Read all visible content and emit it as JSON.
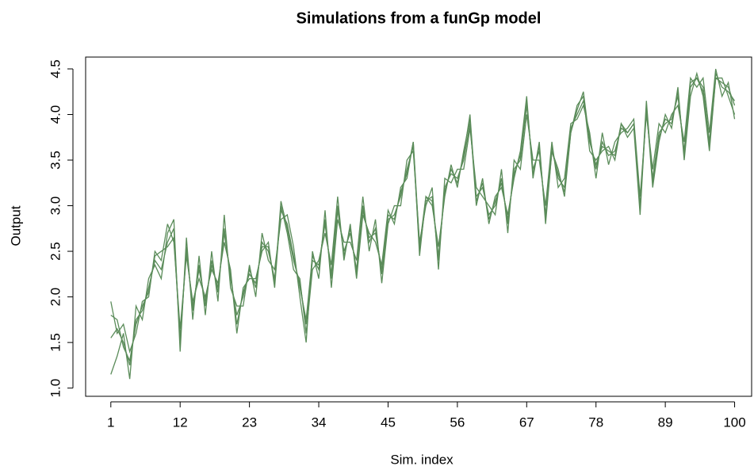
{
  "chart_data": {
    "type": "line",
    "title": "Simulations from a funGp model",
    "x_label": "Sim. index",
    "y_label": "Output",
    "x": [
      1,
      2,
      3,
      4,
      5,
      6,
      7,
      8,
      9,
      10,
      11,
      12,
      13,
      14,
      15,
      16,
      17,
      18,
      19,
      20,
      21,
      22,
      23,
      24,
      25,
      26,
      27,
      28,
      29,
      30,
      31,
      32,
      33,
      34,
      35,
      36,
      37,
      38,
      39,
      40,
      41,
      42,
      43,
      44,
      45,
      46,
      47,
      48,
      49,
      50,
      51,
      52,
      53,
      54,
      55,
      56,
      57,
      58,
      59,
      60,
      61,
      62,
      63,
      64,
      65,
      66,
      67,
      68,
      69,
      70,
      71,
      72,
      73,
      74,
      75,
      76,
      77,
      78,
      79,
      80,
      81,
      82,
      83,
      84,
      85,
      86,
      87,
      88,
      89,
      90,
      91,
      92,
      93,
      94,
      95,
      96,
      97,
      98,
      99,
      100
    ],
    "xlim": [
      -3,
      102.7
    ],
    "xticks": [
      1,
      12,
      23,
      34,
      45,
      56,
      67,
      78,
      89,
      100
    ],
    "ylim": [
      0.91,
      4.63
    ],
    "yticks": [
      {
        "value": 1,
        "label": "1.0"
      },
      1.5,
      {
        "value": 2,
        "label": "2.0"
      },
      2.5,
      {
        "value": 3,
        "label": "3.0"
      },
      3.5,
      {
        "value": 4,
        "label": "4.0"
      },
      4.5
    ],
    "series": [
      {
        "color": "#5b8c5a",
        "values": [
          1.55,
          1.65,
          1.5,
          1.25,
          1.75,
          1.85,
          2.1,
          2.4,
          2.3,
          2.6,
          2.75,
          1.5,
          2.55,
          1.85,
          2.35,
          1.9,
          2.4,
          2.05,
          2.75,
          2.2,
          1.8,
          2.0,
          2.3,
          2.1,
          2.6,
          2.5,
          2.2,
          2.95,
          2.8,
          2.45,
          2.1,
          1.75,
          2.45,
          2.3,
          2.85,
          2.2,
          2.95,
          2.5,
          2.7,
          2.3,
          3.0,
          2.6,
          2.75,
          2.25,
          2.85,
          2.9,
          3.1,
          3.4,
          3.65,
          2.5,
          3.05,
          3.1,
          2.4,
          3.2,
          3.35,
          3.3,
          3.5,
          3.9,
          3.1,
          3.2,
          2.9,
          3.0,
          3.3,
          2.8,
          3.4,
          3.5,
          4.1,
          3.4,
          3.6,
          2.9,
          3.65,
          3.3,
          3.2,
          3.85,
          4.0,
          4.15,
          3.75,
          3.4,
          3.7,
          3.55,
          3.6,
          3.85,
          3.8,
          3.9,
          3.0,
          4.05,
          3.3,
          3.8,
          3.9,
          3.95,
          4.2,
          3.6,
          4.35,
          4.4,
          4.3,
          3.7,
          4.45,
          4.3,
          4.25,
          4.15
        ]
      },
      {
        "color": "#5b8c5a",
        "values": [
          1.95,
          1.6,
          1.7,
          1.4,
          1.6,
          1.95,
          2.0,
          2.5,
          2.4,
          2.8,
          2.6,
          1.65,
          2.45,
          1.95,
          2.2,
          2.0,
          2.3,
          2.15,
          2.6,
          2.3,
          1.6,
          2.1,
          2.2,
          2.2,
          2.5,
          2.6,
          2.1,
          3.0,
          2.7,
          2.3,
          2.2,
          1.6,
          2.3,
          2.4,
          2.7,
          2.35,
          3.1,
          2.4,
          2.8,
          2.2,
          2.9,
          2.7,
          2.6,
          2.35,
          2.95,
          2.8,
          3.2,
          3.3,
          3.7,
          2.45,
          3.1,
          3.0,
          2.55,
          3.1,
          3.45,
          3.2,
          3.6,
          3.95,
          3.0,
          3.3,
          2.8,
          3.1,
          3.2,
          2.9,
          3.3,
          3.6,
          4.2,
          3.3,
          3.7,
          2.8,
          3.6,
          3.4,
          3.1,
          3.8,
          4.1,
          4.2,
          3.6,
          3.5,
          3.6,
          3.65,
          3.5,
          3.9,
          3.75,
          3.85,
          2.9,
          4.1,
          3.2,
          3.7,
          4.0,
          3.85,
          4.3,
          3.5,
          4.2,
          4.45,
          4.2,
          3.6,
          4.4,
          4.4,
          4.2,
          4.0
        ]
      },
      {
        "color": "#5b8c5a",
        "values": [
          1.15,
          1.35,
          1.6,
          1.1,
          1.9,
          1.75,
          2.2,
          2.35,
          2.2,
          2.7,
          2.85,
          1.4,
          2.65,
          1.75,
          2.45,
          1.8,
          2.5,
          1.95,
          2.9,
          2.1,
          1.9,
          1.9,
          2.35,
          2.0,
          2.7,
          2.4,
          2.3,
          2.85,
          2.9,
          2.55,
          2.0,
          1.5,
          2.5,
          2.2,
          2.95,
          2.1,
          2.85,
          2.6,
          2.6,
          2.4,
          3.1,
          2.5,
          2.85,
          2.15,
          2.8,
          3.0,
          3.0,
          3.5,
          3.6,
          2.6,
          3.0,
          3.2,
          2.3,
          3.3,
          3.25,
          3.4,
          3.4,
          3.85,
          3.2,
          3.1,
          3.0,
          2.9,
          3.4,
          2.7,
          3.5,
          3.4,
          4.0,
          3.5,
          3.5,
          3.0,
          3.7,
          3.2,
          3.3,
          3.9,
          3.95,
          4.1,
          3.8,
          3.3,
          3.8,
          3.45,
          3.7,
          3.8,
          3.85,
          3.95,
          3.1,
          4.0,
          3.4,
          3.9,
          3.8,
          4.0,
          4.1,
          3.7,
          4.4,
          4.3,
          4.4,
          3.8,
          4.5,
          4.2,
          4.35,
          3.95
        ]
      },
      {
        "color": "#5b8c5a",
        "values": [
          1.8,
          1.75,
          1.45,
          1.3,
          1.7,
          1.9,
          2.05,
          2.45,
          2.5,
          2.55,
          2.65,
          1.55,
          2.5,
          1.9,
          2.3,
          1.95,
          2.35,
          2.1,
          2.7,
          2.25,
          1.7,
          2.05,
          2.25,
          2.15,
          2.55,
          2.55,
          2.15,
          3.05,
          2.75,
          2.4,
          2.15,
          1.7,
          2.4,
          2.35,
          2.8,
          2.25,
          3.0,
          2.45,
          2.75,
          2.25,
          2.95,
          2.65,
          2.7,
          2.3,
          2.9,
          2.85,
          3.15,
          3.35,
          3.7,
          2.55,
          3.1,
          3.05,
          2.45,
          3.15,
          3.4,
          3.25,
          3.55,
          4.0,
          3.05,
          3.25,
          2.85,
          3.05,
          3.25,
          2.85,
          3.35,
          3.55,
          4.15,
          3.35,
          3.65,
          2.85,
          3.6,
          3.35,
          3.15,
          3.8,
          4.05,
          4.25,
          3.7,
          3.45,
          3.65,
          3.6,
          3.55,
          3.9,
          3.8,
          3.9,
          2.95,
          4.15,
          3.25,
          3.75,
          3.95,
          3.9,
          4.25,
          3.55,
          4.3,
          4.4,
          4.25,
          3.65,
          4.4,
          4.35,
          4.3,
          4.1
        ]
      }
    ]
  }
}
